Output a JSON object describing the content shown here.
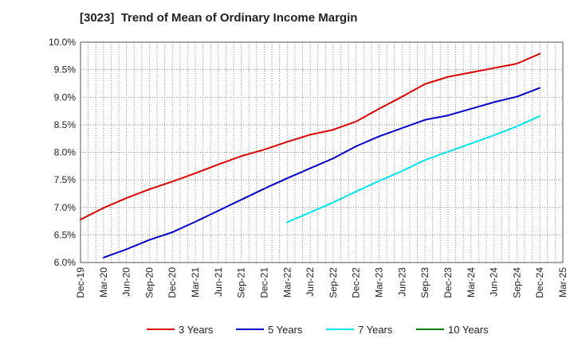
{
  "chart_data": {
    "type": "line",
    "title": "[3023]  Trend of Mean of Ordinary Income Margin",
    "xlabel": "",
    "ylabel": "",
    "ylim": [
      6.0,
      10.0
    ],
    "y_ticks": [
      "6.0%",
      "6.5%",
      "7.0%",
      "7.5%",
      "8.0%",
      "8.5%",
      "9.0%",
      "9.5%",
      "10.0%"
    ],
    "x_ticks": [
      "Dec-19",
      "Mar-20",
      "Jun-20",
      "Sep-20",
      "Dec-20",
      "Mar-21",
      "Jun-21",
      "Sep-21",
      "Dec-21",
      "Mar-22",
      "Jun-22",
      "Sep-22",
      "Dec-22",
      "Mar-23",
      "Jun-23",
      "Sep-23",
      "Dec-23",
      "Mar-24",
      "Jun-24",
      "Sep-24",
      "Dec-24",
      "Mar-25"
    ],
    "grid": true,
    "legend_position": "bottom",
    "series": [
      {
        "name": "3 Years",
        "color": "#e00000",
        "x": [
          "Dec-19",
          "Mar-20",
          "Jun-20",
          "Sep-20",
          "Dec-20",
          "Mar-21",
          "Jun-21",
          "Sep-21",
          "Dec-21",
          "Mar-22",
          "Jun-22",
          "Sep-22",
          "Dec-22",
          "Mar-23",
          "Jun-23",
          "Sep-23",
          "Dec-23",
          "Mar-24",
          "Jun-24",
          "Sep-24",
          "Dec-24"
        ],
        "values": [
          6.78,
          6.99,
          7.17,
          7.33,
          7.47,
          7.62,
          7.78,
          7.93,
          8.05,
          8.19,
          8.32,
          8.41,
          8.56,
          8.79,
          9.01,
          9.24,
          9.37,
          9.45,
          9.53,
          9.61,
          9.79
        ]
      },
      {
        "name": "5 Years",
        "color": "#0000cc",
        "x": [
          "Mar-20",
          "Jun-20",
          "Sep-20",
          "Dec-20",
          "Mar-21",
          "Jun-21",
          "Sep-21",
          "Dec-21",
          "Mar-22",
          "Jun-22",
          "Sep-22",
          "Dec-22",
          "Mar-23",
          "Jun-23",
          "Sep-23",
          "Dec-23",
          "Mar-24",
          "Jun-24",
          "Sep-24",
          "Dec-24"
        ],
        "values": [
          6.09,
          6.24,
          6.41,
          6.55,
          6.74,
          6.94,
          7.14,
          7.34,
          7.53,
          7.71,
          7.89,
          8.11,
          8.29,
          8.44,
          8.59,
          8.67,
          8.79,
          8.91,
          9.01,
          9.17
        ]
      },
      {
        "name": "7 Years",
        "color": "#00e5ee",
        "x": [
          "Mar-22",
          "Jun-22",
          "Sep-22",
          "Dec-22",
          "Mar-23",
          "Jun-23",
          "Sep-23",
          "Dec-23",
          "Mar-24",
          "Jun-24",
          "Sep-24",
          "Dec-24"
        ],
        "values": [
          6.73,
          6.91,
          7.09,
          7.29,
          7.48,
          7.66,
          7.86,
          8.01,
          8.16,
          8.31,
          8.47,
          8.66
        ]
      },
      {
        "name": "10 Years",
        "color": "#008000",
        "x": [],
        "values": []
      }
    ]
  }
}
